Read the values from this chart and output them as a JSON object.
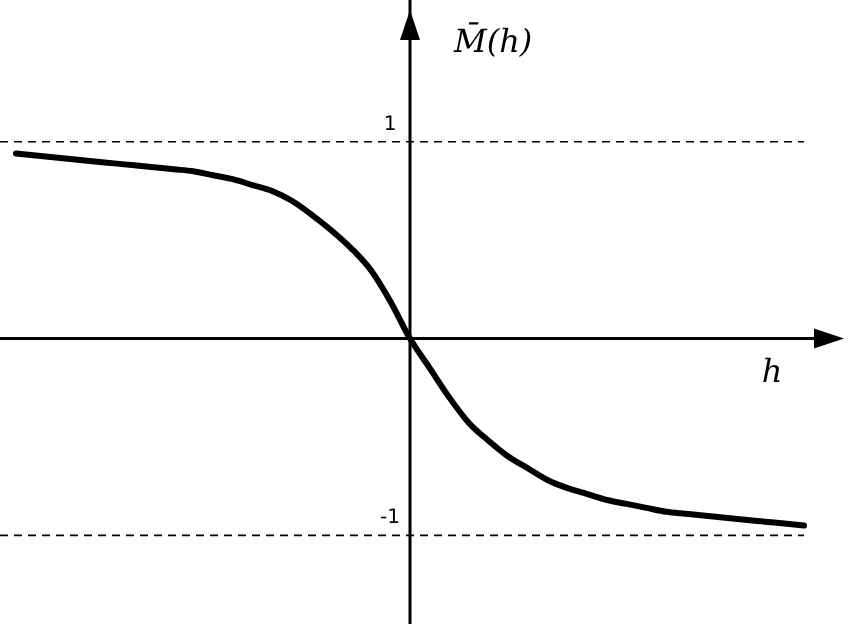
{
  "chart_data": {
    "type": "line",
    "xlabel": "h",
    "ylabel": "M̄(h)",
    "categories": [
      null,
      null,
      null,
      null,
      null,
      null,
      null,
      null,
      null,
      null,
      null,
      null,
      null,
      null,
      null,
      null,
      null,
      null,
      null,
      null,
      null,
      null,
      null,
      null,
      null,
      null,
      null,
      null,
      null,
      null,
      null,
      null,
      null,
      null,
      null,
      null,
      null,
      null,
      null,
      null,
      null
    ],
    "series": [
      {
        "color": "#000000",
        "values": [
          0.94,
          0.93,
          0.92,
          0.91,
          0.9,
          0.89,
          0.88,
          0.87,
          0.86,
          0.85,
          0.83,
          0.81,
          0.78,
          0.75,
          0.7,
          0.63,
          0.55,
          0.46,
          0.35,
          0.19,
          0,
          -0.15,
          -0.3,
          -0.43,
          -0.52,
          -0.6,
          -0.66,
          -0.72,
          -0.76,
          -0.79,
          -0.82,
          -0.84,
          -0.86,
          -0.88,
          -0.89,
          -0.9,
          -0.91,
          -0.92,
          -0.93,
          -0.94,
          -0.95
        ]
      }
    ],
    "ylim": [
      -1.45,
      1.72
    ],
    "yticks": [
      -1,
      1
    ],
    "ref_lines": [
      {
        "axis": "y",
        "value": 1,
        "color": "#000000",
        "line_style": "dashed"
      },
      {
        "axis": "y",
        "value": -1,
        "color": "#000000",
        "line_style": "dashed"
      }
    ],
    "grid": false,
    "marker": "none",
    "line_style": "solid"
  }
}
